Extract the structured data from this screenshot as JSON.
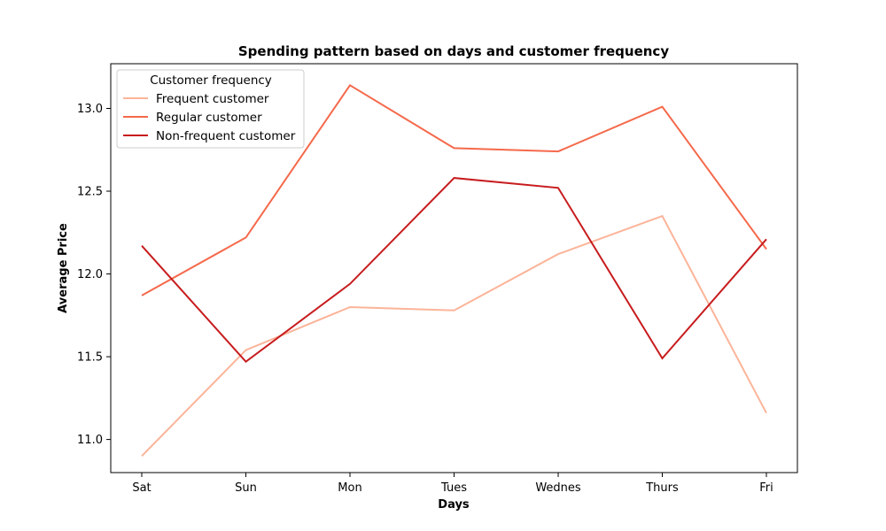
{
  "chart_data": {
    "type": "line",
    "title": "Spending pattern based on days and customer frequency",
    "xlabel": "Days",
    "ylabel": "Average Price",
    "categories": [
      "Sat",
      "Sun",
      "Mon",
      "Tues",
      "Wednes",
      "Thurs",
      "Fri"
    ],
    "ylim": [
      10.8,
      13.27
    ],
    "yticks": [
      11.0,
      11.5,
      12.0,
      12.5,
      13.0
    ],
    "ytick_labels": [
      "11.0",
      "11.5",
      "12.0",
      "12.5",
      "13.0"
    ],
    "grid": false,
    "legend": {
      "title": "Customer frequency",
      "placement": "top-left"
    },
    "series": [
      {
        "name": "Frequent customer",
        "color": "#fcb499",
        "values": [
          10.9,
          11.54,
          11.8,
          11.78,
          12.12,
          12.35,
          11.16
        ]
      },
      {
        "name": "Regular customer",
        "color": "#f5694b",
        "values": [
          11.87,
          12.22,
          13.14,
          12.76,
          12.74,
          13.01,
          12.15
        ]
      },
      {
        "name": "Non-frequent customer",
        "color": "#c71c1e",
        "values": [
          12.17,
          11.47,
          11.94,
          12.58,
          12.52,
          11.49,
          12.21
        ]
      }
    ]
  }
}
